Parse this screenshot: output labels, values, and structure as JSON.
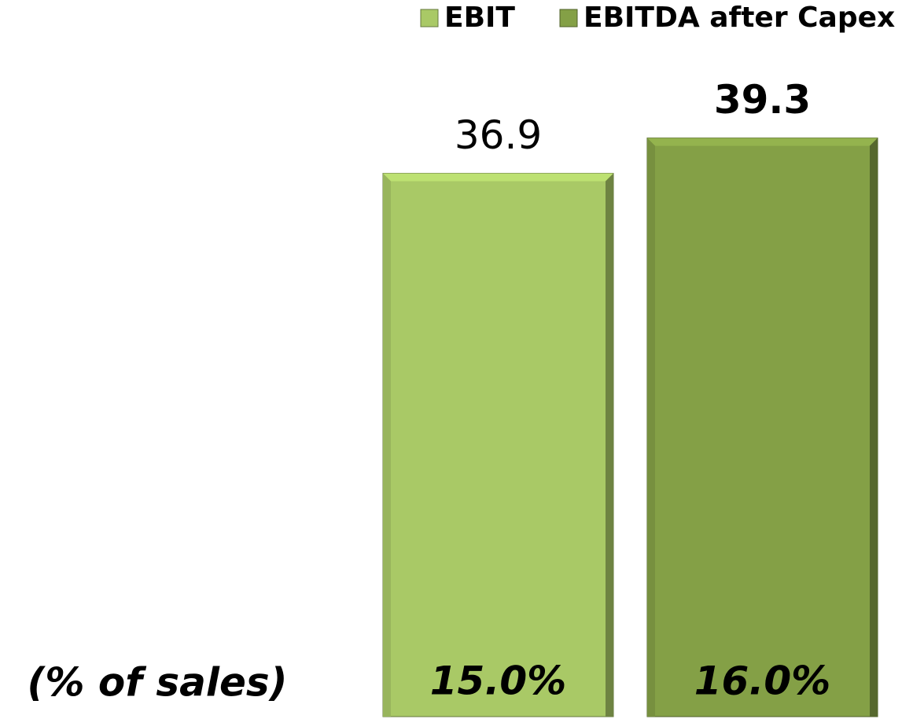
{
  "chart_data": {
    "type": "bar",
    "categories": [
      null
    ],
    "series": [
      {
        "name": "EBIT",
        "color": "#a9c966",
        "values": [
          36.9
        ],
        "sales_share": [
          15
        ],
        "sales_share_labels": [
          "15.0%"
        ]
      },
      {
        "name": "EBITDA after Capex",
        "color": "#84a046",
        "values": [
          39.3
        ],
        "sales_share": [
          16
        ],
        "sales_share_labels": [
          "16.0%"
        ]
      }
    ],
    "annotation": "(% of sales)",
    "ylim": [
      0,
      41.2
    ],
    "legend": "top-right"
  }
}
